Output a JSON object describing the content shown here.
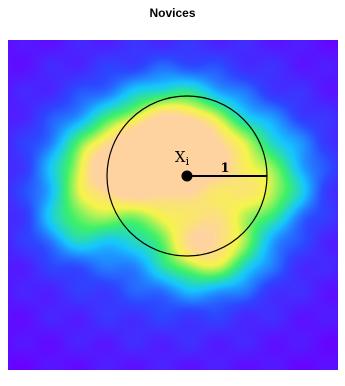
{
  "chart_data": {
    "type": "heatmap",
    "title": "Novices",
    "colorscale": [
      "#6a00ff",
      "#2d46ff",
      "#16c6ff",
      "#3cf06a",
      "#f6f44a",
      "#ffd3a0"
    ],
    "blobs": [
      {
        "cx": 0.44,
        "cy": 0.34,
        "sx": 0.15,
        "sy": 0.1,
        "w": 0.55
      },
      {
        "cx": 0.62,
        "cy": 0.34,
        "sx": 0.18,
        "sy": 0.08,
        "w": 0.38
      },
      {
        "cx": 0.29,
        "cy": 0.4,
        "sx": 0.1,
        "sy": 0.08,
        "w": 0.42
      },
      {
        "cx": 0.6,
        "cy": 0.63,
        "sx": 0.1,
        "sy": 0.08,
        "w": 0.62
      },
      {
        "cx": 0.8,
        "cy": 0.46,
        "sx": 0.08,
        "sy": 0.06,
        "w": 0.3
      },
      {
        "cx": 0.21,
        "cy": 0.55,
        "sx": 0.08,
        "sy": 0.07,
        "w": 0.3
      },
      {
        "cx": 0.52,
        "cy": 0.24,
        "sx": 0.1,
        "sy": 0.08,
        "w": 0.32
      },
      {
        "cx": 0.45,
        "cy": 0.48,
        "sx": 0.12,
        "sy": 0.08,
        "w": 0.22
      },
      {
        "cx": 0.7,
        "cy": 0.5,
        "sx": 0.1,
        "sy": 0.1,
        "w": 0.2
      },
      {
        "cx": 0.5,
        "cy": 0.45,
        "sx": 0.32,
        "sy": 0.3,
        "w": 0.38
      }
    ],
    "annotations": {
      "point_label": "X",
      "point_subscript": "i",
      "radius_label": "1"
    }
  }
}
